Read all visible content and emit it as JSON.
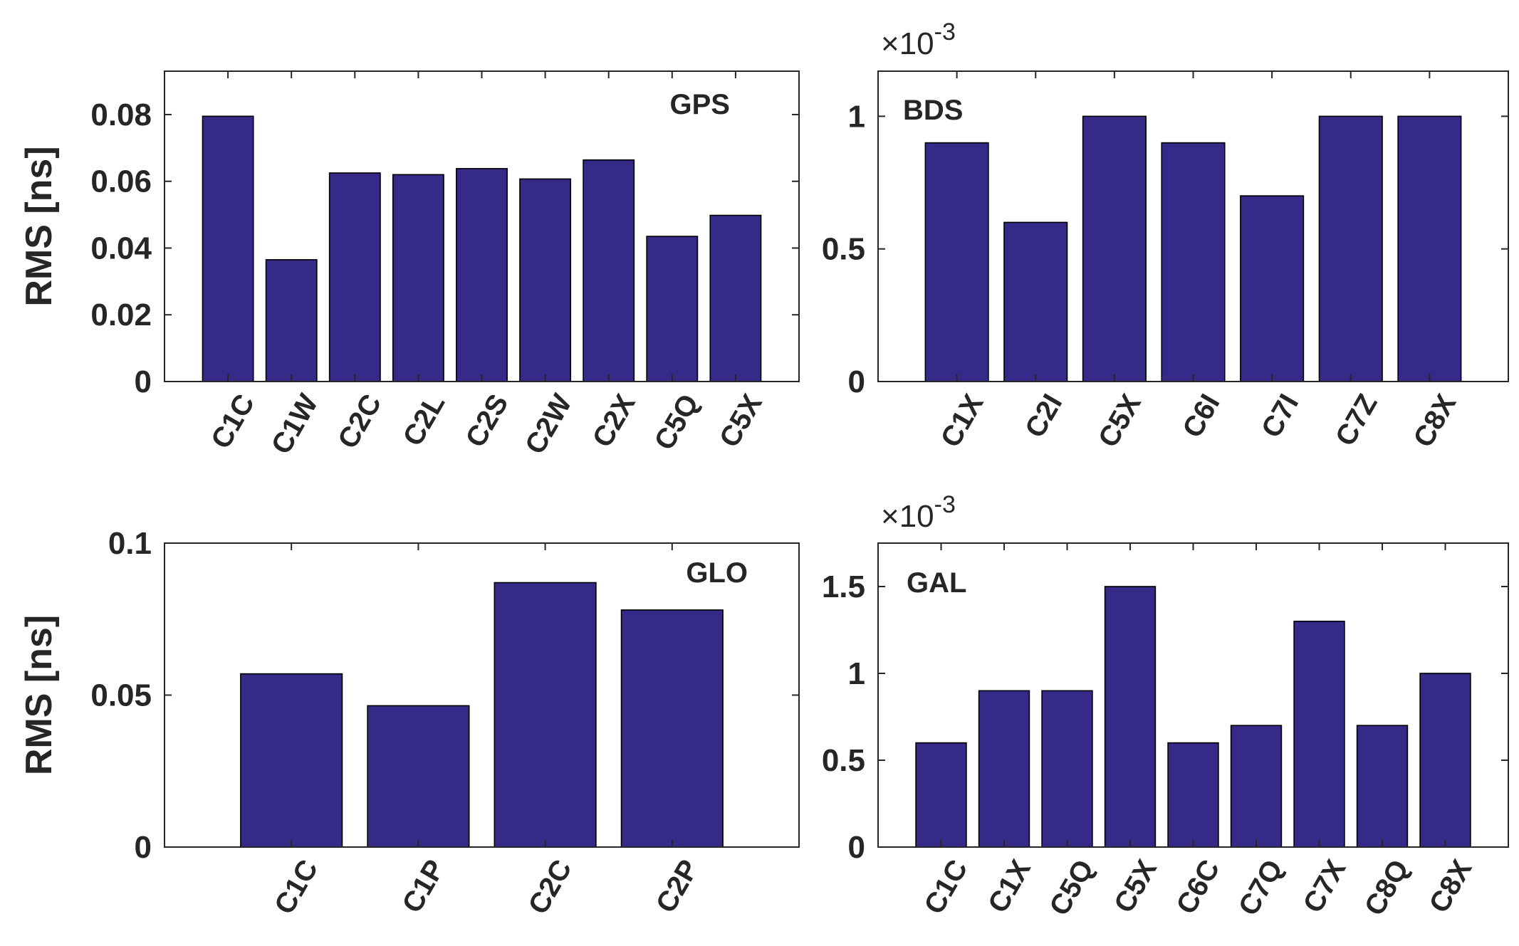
{
  "colors": {
    "bar": "#352a87",
    "axis": "#262626",
    "background": "#ffffff"
  },
  "chart_data": [
    {
      "type": "bar",
      "panel": "top-left",
      "label": "GPS",
      "ylabel": "RMS [ns]",
      "exponent": null,
      "ylim": [
        0,
        0.093
      ],
      "yticks": [
        0,
        0.02,
        0.04,
        0.06,
        0.08
      ],
      "ytick_labels": [
        "0",
        "0.02",
        "0.04",
        "0.06",
        "0.08"
      ],
      "categories": [
        "C1C",
        "C1W",
        "C2C",
        "C2L",
        "C2S",
        "C2W",
        "C2X",
        "C5Q",
        "C5X"
      ],
      "values": [
        0.0795,
        0.0365,
        0.0625,
        0.062,
        0.0638,
        0.0607,
        0.0664,
        0.0435,
        0.0498
      ]
    },
    {
      "type": "bar",
      "panel": "top-right",
      "label": "BDS",
      "ylabel": "",
      "exponent": "-3",
      "ylim": [
        0,
        1.17
      ],
      "yticks": [
        0,
        0.5,
        1
      ],
      "ytick_labels": [
        "0",
        "0.5",
        "1"
      ],
      "categories": [
        "C1X",
        "C2I",
        "C5X",
        "C6I",
        "C7I",
        "C7Z",
        "C8X"
      ],
      "values": [
        0.9,
        0.6,
        1.0,
        0.9,
        0.7,
        1.0,
        1.0
      ]
    },
    {
      "type": "bar",
      "panel": "bottom-left",
      "label": "GLO",
      "ylabel": "RMS [ns]",
      "exponent": null,
      "ylim": [
        0,
        0.1
      ],
      "yticks": [
        0,
        0.05,
        0.1
      ],
      "ytick_labels": [
        "0",
        "0.05",
        "0.1"
      ],
      "categories": [
        "C1C",
        "C1P",
        "C2C",
        "C2P"
      ],
      "values": [
        0.057,
        0.0465,
        0.087,
        0.078
      ]
    },
    {
      "type": "bar",
      "panel": "bottom-right",
      "label": "GAL",
      "ylabel": "",
      "exponent": "-3",
      "ylim": [
        0,
        1.75
      ],
      "yticks": [
        0,
        0.5,
        1,
        1.5
      ],
      "ytick_labels": [
        "0",
        "0.5",
        "1",
        "1.5"
      ],
      "categories": [
        "C1C",
        "C1X",
        "C5Q",
        "C5X",
        "C6C",
        "C7Q",
        "C7X",
        "C8Q",
        "C8X"
      ],
      "values": [
        0.6,
        0.9,
        0.9,
        1.5,
        0.6,
        0.7,
        1.3,
        0.7,
        1.0
      ]
    }
  ]
}
